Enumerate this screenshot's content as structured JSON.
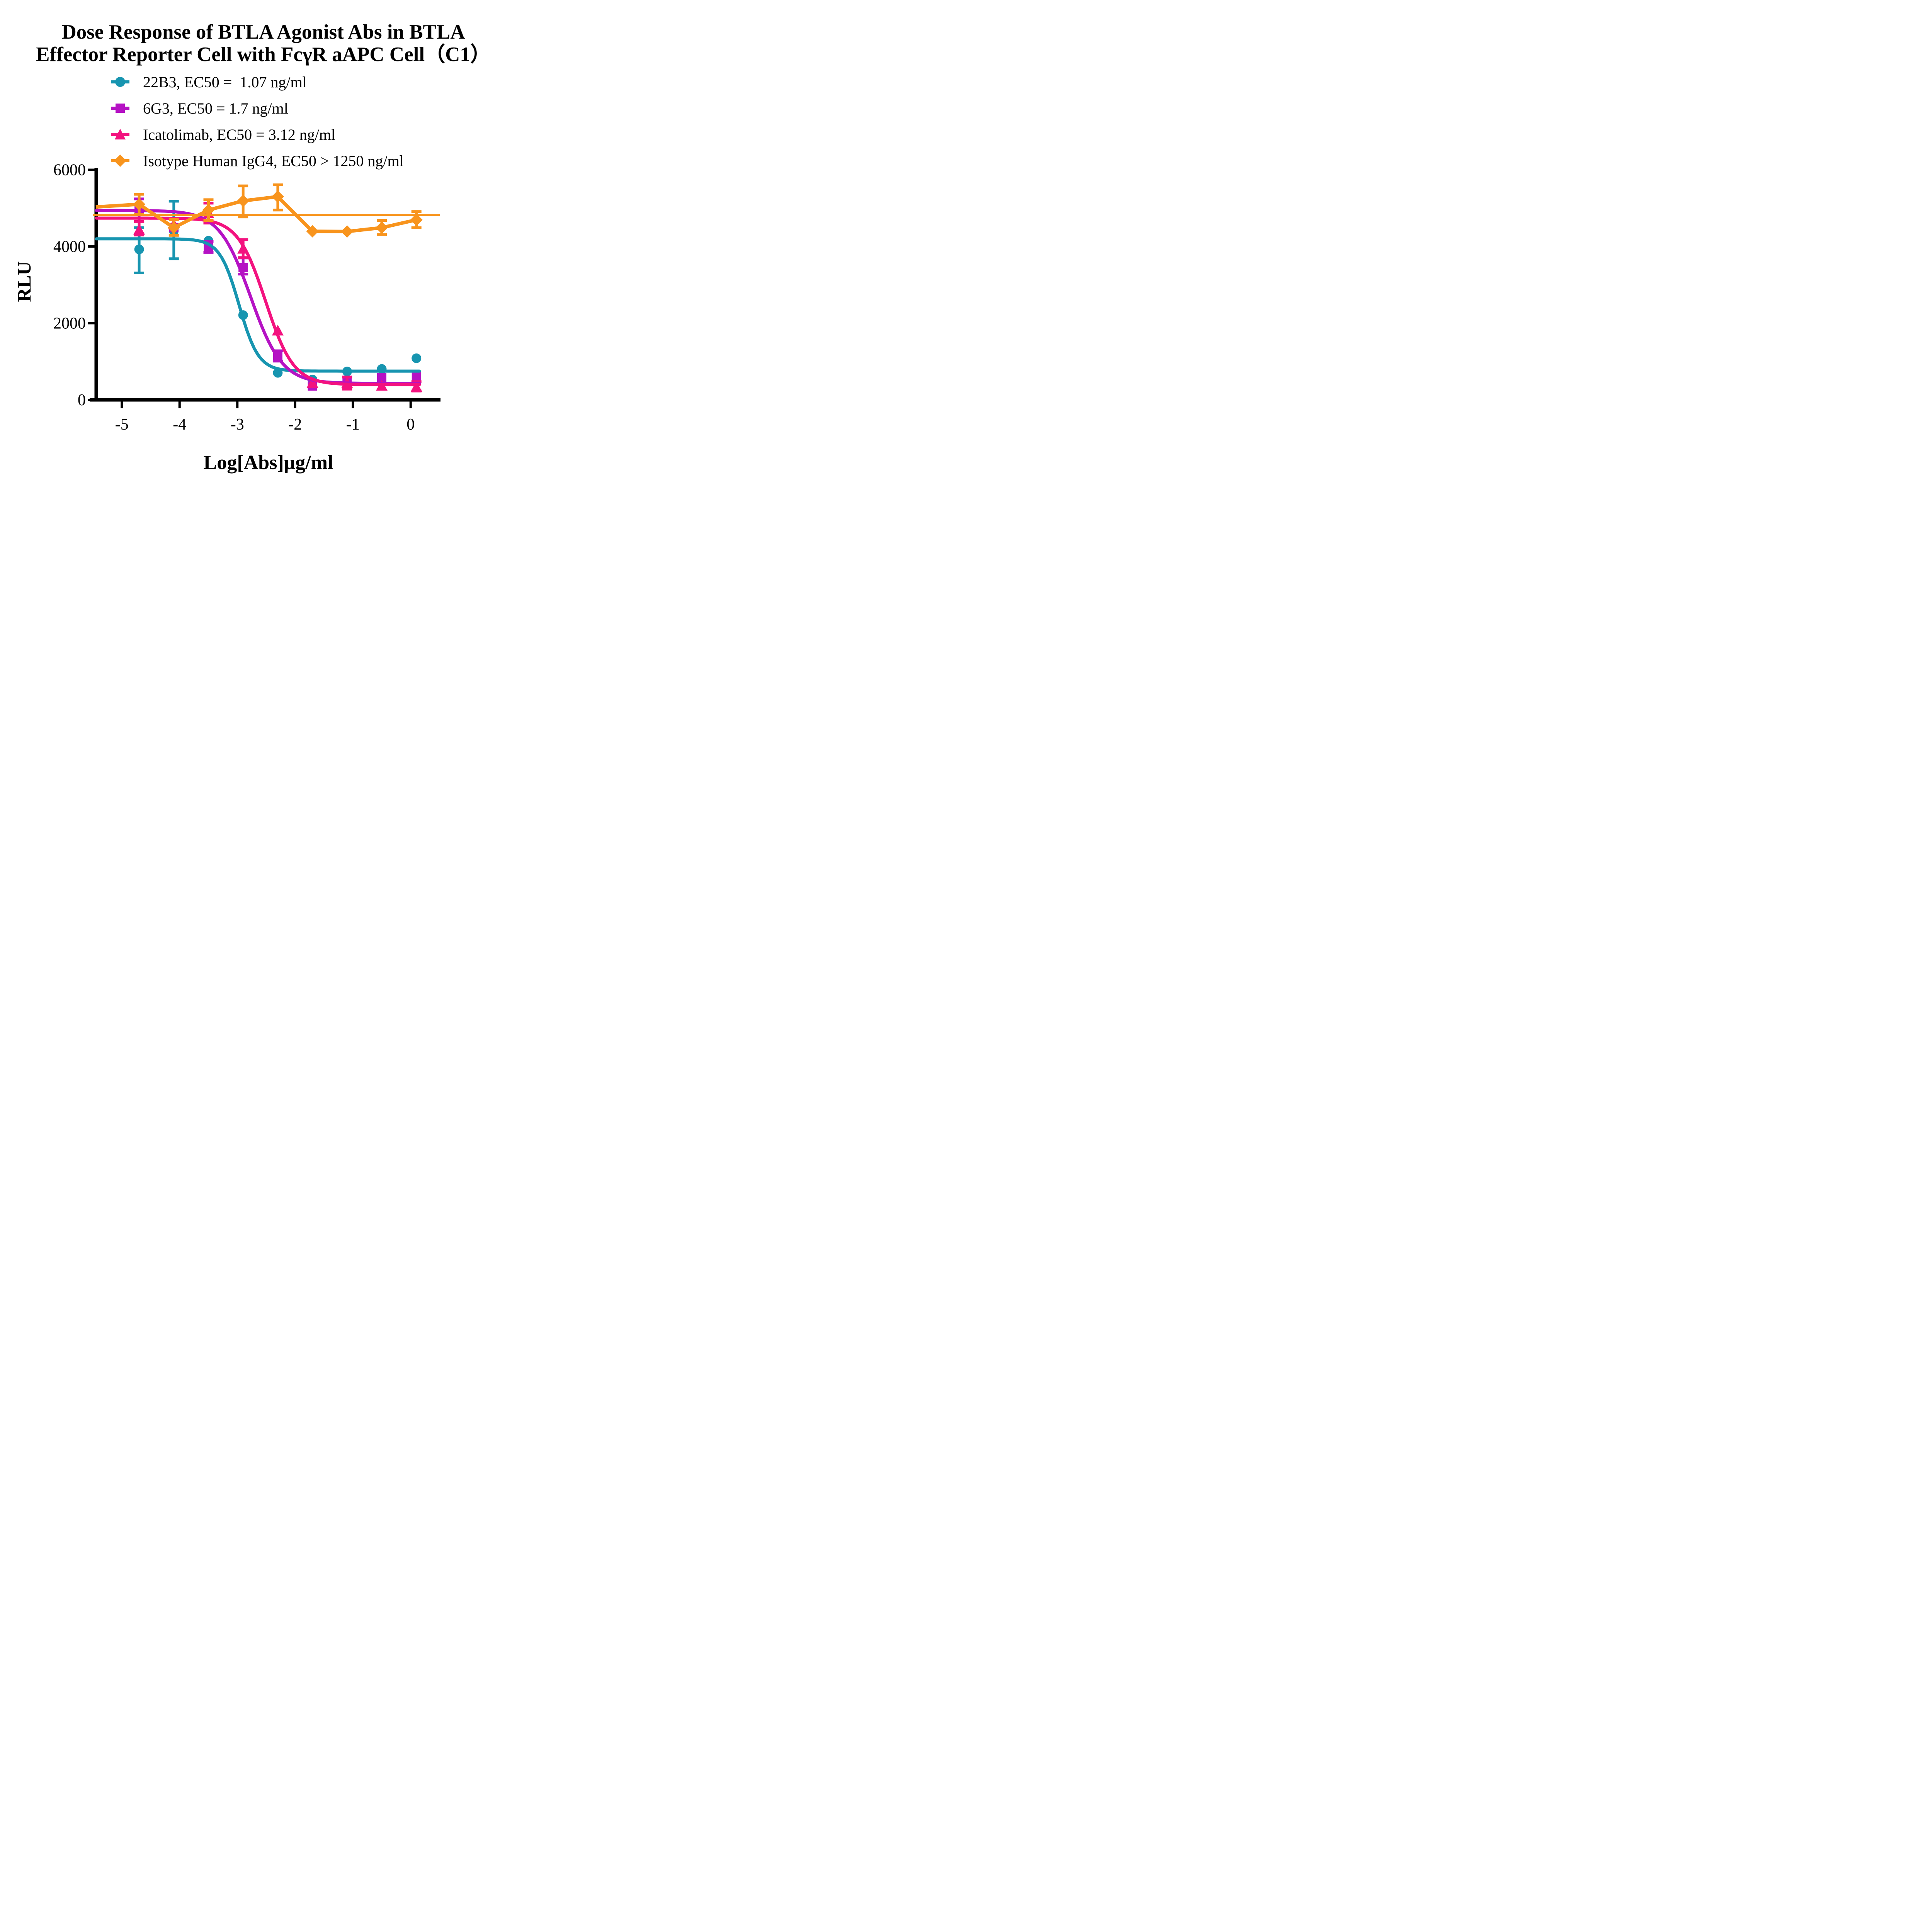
{
  "header": {
    "title_line1": "Dose Response of BTLA Agonist Abs in BTLA",
    "title_line2": "Effector Reporter Cell with FcγR aAPC Cell（C1）"
  },
  "legend": {
    "items": [
      {
        "label": "22B3, EC50 =  1.07 ng/ml",
        "color": "#1795B0",
        "marker": "circle"
      },
      {
        "label": "6G3, EC50 = 1.7 ng/ml",
        "color": "#B512C4",
        "marker": "square"
      },
      {
        "label": "Icatolimab, EC50 = 3.12 ng/ml",
        "color": "#F3127F",
        "marker": "triangle"
      },
      {
        "label": "Isotype Human IgG4, EC50 > 1250 ng/ml",
        "color": "#F8941D",
        "marker": "diamond"
      }
    ]
  },
  "axes": {
    "ylabel": "RLU",
    "xlabel": "Log[Abs]μg/ml"
  },
  "chart_data": {
    "type": "scatter",
    "subtype": "dose-response curves with error bars",
    "title": "Dose Response of BTLA Agonist Abs in BTLA Effector Reporter Cell with FcγR aAPC Cell（C1）",
    "xlabel": "Log[Abs]μg/ml",
    "ylabel": "RLU",
    "xlim": [
      -5.45,
      0.52
    ],
    "ylim": [
      0,
      6000
    ],
    "x_ticks": [
      -5,
      -4,
      -3,
      -2,
      -1,
      0
    ],
    "y_ticks": [
      0,
      2000,
      4000,
      6000
    ],
    "grid": false,
    "legend_position": "top-left above plot",
    "series": [
      {
        "name": "22B3",
        "ec50_text": "EC50 =  1.07 ng/ml",
        "color": "#1795B0",
        "marker": "circle",
        "fit": {
          "type": "4pl",
          "top": 4200,
          "bottom": 750,
          "logec50": -2.97,
          "hill": 2.6
        },
        "points": [
          {
            "x": -4.7,
            "y": 3925,
            "err": [
              3310,
              4490
            ]
          },
          {
            "x": -4.1,
            "y": 4410,
            "err": [
              3680,
              5180
            ]
          },
          {
            "x": -3.5,
            "y": 4150,
            "err": null
          },
          {
            "x": -2.9,
            "y": 2210,
            "err": null
          },
          {
            "x": -2.3,
            "y": 705,
            "err": null
          },
          {
            "x": -1.7,
            "y": 530,
            "err": null
          },
          {
            "x": -1.1,
            "y": 740,
            "err": null
          },
          {
            "x": -0.5,
            "y": 805,
            "err": null
          },
          {
            "x": 0.1,
            "y": 1085,
            "err": null
          }
        ]
      },
      {
        "name": "6G3",
        "ec50_text": "EC50 = 1.7 ng/ml",
        "color": "#B512C4",
        "marker": "square",
        "fit": {
          "type": "4pl",
          "top": 4940,
          "bottom": 430,
          "logec50": -2.77,
          "hill": 1.6
        },
        "points": [
          {
            "x": -4.7,
            "y": 4980,
            "err": [
              4640,
              5240
            ]
          },
          {
            "x": -4.1,
            "y": 4490,
            "err": null
          },
          {
            "x": -3.5,
            "y": 4000,
            "err": [
              3845,
              4130
            ]
          },
          {
            "x": -2.9,
            "y": 3450,
            "err": [
              3280,
              3700
            ]
          },
          {
            "x": -2.3,
            "y": 1150,
            "err": [
              1010,
              1280
            ]
          },
          {
            "x": -1.7,
            "y": 360,
            "err": null
          },
          {
            "x": -1.1,
            "y": 510,
            "err": null
          },
          {
            "x": -0.5,
            "y": 585,
            "err": null
          },
          {
            "x": 0.1,
            "y": 605,
            "err": null
          }
        ]
      },
      {
        "name": "Icatolimab",
        "ec50_text": "EC50 = 3.12 ng/ml",
        "color": "#F3127F",
        "marker": "triangle",
        "fit": {
          "type": "4pl",
          "top": 4740,
          "bottom": 395,
          "logec50": -2.51,
          "hill": 1.8
        },
        "points": [
          {
            "x": -4.7,
            "y": 4440,
            "err": [
              4300,
              4650
            ]
          },
          {
            "x": -4.1,
            "y": 4580,
            "err": null
          },
          {
            "x": -3.5,
            "y": 4870,
            "err": [
              4610,
              5130
            ]
          },
          {
            "x": -2.9,
            "y": 3945,
            "err": [
              3710,
              4180
            ]
          },
          {
            "x": -2.3,
            "y": 1810,
            "err": null
          },
          {
            "x": -1.7,
            "y": 445,
            "err": null
          },
          {
            "x": -1.1,
            "y": 440,
            "err": [
              280,
              595
            ]
          },
          {
            "x": -0.5,
            "y": 370,
            "err": null
          },
          {
            "x": 0.1,
            "y": 340,
            "err": [
              230,
              475
            ]
          }
        ]
      },
      {
        "name": "Isotype Human IgG4",
        "ec50_text": "EC50 > 1250 ng/ml",
        "color": "#F8941D",
        "marker": "diamond",
        "fit": {
          "type": "flat",
          "y": 4820
        },
        "connect": true,
        "lead_in": {
          "x": -5.45,
          "y": 5030
        },
        "points": [
          {
            "x": -4.7,
            "y": 5100,
            "err": [
              4840,
              5360
            ]
          },
          {
            "x": -4.1,
            "y": 4490,
            "err": [
              4290,
              4700
            ]
          },
          {
            "x": -3.5,
            "y": 4950,
            "err": [
              4680,
              5220
            ]
          },
          {
            "x": -2.9,
            "y": 5190,
            "err": [
              4770,
              5580
            ]
          },
          {
            "x": -2.3,
            "y": 5300,
            "err": [
              4950,
              5610
            ]
          },
          {
            "x": -1.7,
            "y": 4395,
            "err": null
          },
          {
            "x": -1.1,
            "y": 4390,
            "err": null
          },
          {
            "x": -0.5,
            "y": 4490,
            "err": [
              4310,
              4680
            ]
          },
          {
            "x": 0.1,
            "y": 4695,
            "err": [
              4490,
              4910
            ]
          }
        ]
      }
    ]
  }
}
